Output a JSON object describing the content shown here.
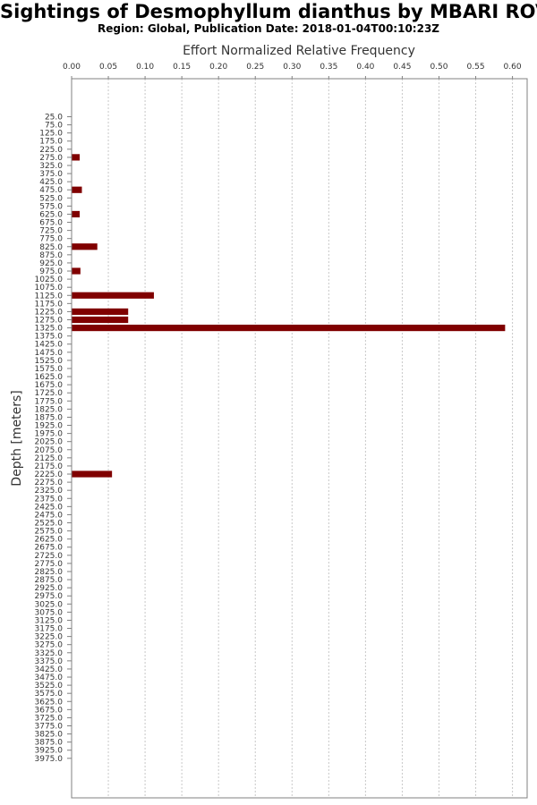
{
  "chart_data": {
    "type": "bar",
    "orientation": "horizontal",
    "title": "Sightings of Desmophyllum dianthus by MBARI ROVs",
    "subtitle": "Region: Global, Publication Date: 2018-01-04T00:10:23Z",
    "xlabel": "Effort Normalized Relative Frequency",
    "ylabel": "Depth [meters]",
    "xlim": [
      0,
      0.62
    ],
    "xticks": [
      "0.00",
      "0.05",
      "0.10",
      "0.15",
      "0.20",
      "0.25",
      "0.30",
      "0.35",
      "0.40",
      "0.45",
      "0.50",
      "0.55",
      "0.60"
    ],
    "x_axis_position": "top",
    "grid": "vertical dashed",
    "bar_color": "#800000",
    "categories": [
      "25.0",
      "75.0",
      "125.0",
      "175.0",
      "225.0",
      "275.0",
      "325.0",
      "375.0",
      "425.0",
      "475.0",
      "525.0",
      "575.0",
      "625.0",
      "675.0",
      "725.0",
      "775.0",
      "825.0",
      "875.0",
      "925.0",
      "975.0",
      "1025.0",
      "1075.0",
      "1125.0",
      "1175.0",
      "1225.0",
      "1275.0",
      "1325.0",
      "1375.0",
      "1425.0",
      "1475.0",
      "1525.0",
      "1575.0",
      "1625.0",
      "1675.0",
      "1725.0",
      "1775.0",
      "1825.0",
      "1875.0",
      "1925.0",
      "1975.0",
      "2025.0",
      "2075.0",
      "2125.0",
      "2175.0",
      "2225.0",
      "2275.0",
      "2325.0",
      "2375.0",
      "2425.0",
      "2475.0",
      "2525.0",
      "2575.0",
      "2625.0",
      "2675.0",
      "2725.0",
      "2775.0",
      "2825.0",
      "2875.0",
      "2925.0",
      "2975.0",
      "3025.0",
      "3075.0",
      "3125.0",
      "3175.0",
      "3225.0",
      "3275.0",
      "3325.0",
      "3375.0",
      "3425.0",
      "3475.0",
      "3525.0",
      "3575.0",
      "3625.0",
      "3675.0",
      "3725.0",
      "3775.0",
      "3825.0",
      "3875.0",
      "3925.0",
      "3975.0"
    ],
    "values": [
      0,
      0,
      0,
      0,
      0,
      0.011,
      0,
      0,
      0,
      0.014,
      0,
      0,
      0.011,
      0,
      0,
      0,
      0.035,
      0,
      0,
      0.012,
      0,
      0,
      0.112,
      0,
      0.077,
      0.077,
      0.59,
      0,
      0,
      0,
      0,
      0,
      0,
      0,
      0,
      0,
      0,
      0,
      0,
      0,
      0,
      0,
      0,
      0,
      0.055,
      0,
      0,
      0,
      0,
      0,
      0,
      0,
      0,
      0,
      0,
      0,
      0,
      0,
      0,
      0,
      0,
      0,
      0,
      0,
      0,
      0,
      0,
      0,
      0,
      0,
      0,
      0,
      0,
      0,
      0,
      0,
      0,
      0,
      0,
      0
    ]
  }
}
